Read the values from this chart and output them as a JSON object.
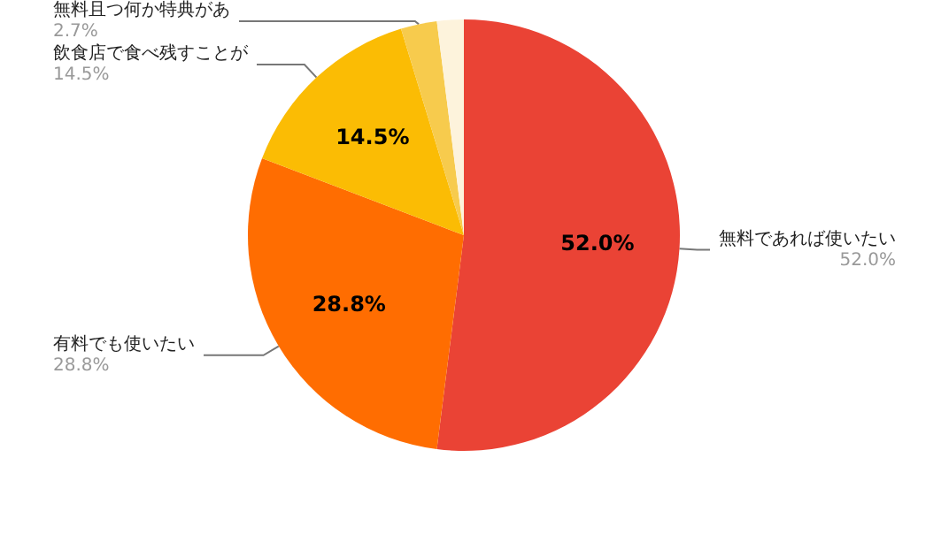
{
  "chart_data": {
    "type": "pie",
    "categories": [
      "無料であれば使いたい",
      "有料でも使いたい",
      "飲食店で食べ残すことが",
      "無料且つ何か特典があ",
      null
    ],
    "values": [
      52.0,
      28.8,
      14.5,
      2.7,
      2.0
    ],
    "colors": [
      "#ea4335",
      "#ff6d01",
      "#fbbc04",
      "#f7cb4d",
      "#fdf3dc"
    ],
    "value_labels": [
      "52.0%",
      "28.8%",
      "14.5%",
      "2.7%",
      null
    ],
    "legend": false
  }
}
